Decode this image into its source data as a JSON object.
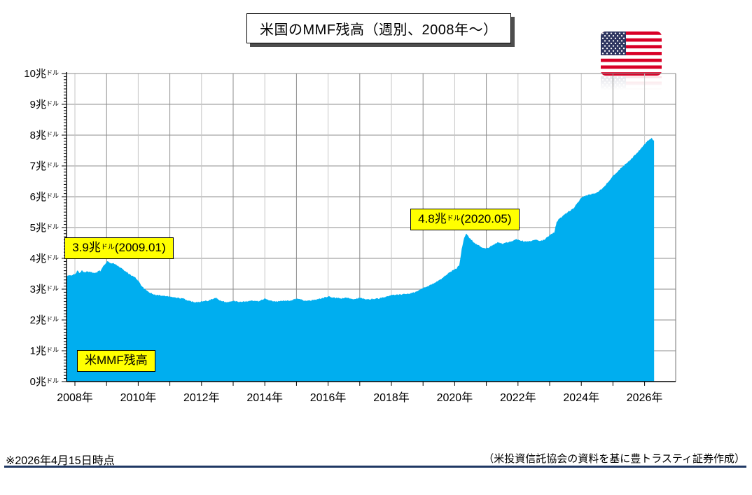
{
  "title": "米国のMMF残高（週別、2008年～）",
  "chart_data": {
    "type": "area",
    "title": "米国のMMF残高（週別、2008年～）",
    "series_name": "米MMF残高",
    "series_label": "米MMF残高",
    "y_unit_big": "兆",
    "y_unit_small": "ドル",
    "x_year_suffix": "年",
    "y_range": [
      0,
      10
    ],
    "y_ticks": [
      0,
      1,
      2,
      3,
      4,
      5,
      6,
      7,
      8,
      9,
      10
    ],
    "x_range": [
      2007.74,
      2026.98
    ],
    "x_gridline_years": [
      2008,
      2009,
      2010,
      2011,
      2012,
      2013,
      2014,
      2015,
      2016,
      2017,
      2018,
      2019,
      2020,
      2021,
      2022,
      2023,
      2024,
      2025,
      2026
    ],
    "x_tick_years_labeled": [
      2008,
      2010,
      2012,
      2014,
      2016,
      2018,
      2020,
      2022,
      2024,
      2026
    ],
    "area_color": "#00AEEF",
    "grid_color_major": "#8c8c8c",
    "grid_color_minor": "#c6c6c6",
    "axis_color": "#000000",
    "points": [
      [
        2007.74,
        3.42
      ],
      [
        2007.85,
        3.45
      ],
      [
        2008.0,
        3.48
      ],
      [
        2008.08,
        3.6
      ],
      [
        2008.15,
        3.52
      ],
      [
        2008.22,
        3.6
      ],
      [
        2008.3,
        3.55
      ],
      [
        2008.4,
        3.58
      ],
      [
        2008.5,
        3.55
      ],
      [
        2008.6,
        3.52
      ],
      [
        2008.7,
        3.55
      ],
      [
        2008.75,
        3.62
      ],
      [
        2008.8,
        3.58
      ],
      [
        2008.9,
        3.75
      ],
      [
        2009.0,
        3.88
      ],
      [
        2009.05,
        3.9
      ],
      [
        2009.1,
        3.86
      ],
      [
        2009.2,
        3.84
      ],
      [
        2009.3,
        3.8
      ],
      [
        2009.4,
        3.72
      ],
      [
        2009.5,
        3.66
      ],
      [
        2009.6,
        3.58
      ],
      [
        2009.7,
        3.5
      ],
      [
        2009.8,
        3.44
      ],
      [
        2009.9,
        3.38
      ],
      [
        2010.0,
        3.28
      ],
      [
        2010.1,
        3.12
      ],
      [
        2010.2,
        3.0
      ],
      [
        2010.35,
        2.9
      ],
      [
        2010.5,
        2.82
      ],
      [
        2010.7,
        2.8
      ],
      [
        2010.9,
        2.78
      ],
      [
        2011.0,
        2.76
      ],
      [
        2011.2,
        2.72
      ],
      [
        2011.4,
        2.7
      ],
      [
        2011.6,
        2.62
      ],
      [
        2011.8,
        2.58
      ],
      [
        2012.0,
        2.6
      ],
      [
        2012.2,
        2.63
      ],
      [
        2012.45,
        2.72
      ],
      [
        2012.6,
        2.62
      ],
      [
        2012.8,
        2.58
      ],
      [
        2013.0,
        2.62
      ],
      [
        2013.2,
        2.58
      ],
      [
        2013.4,
        2.6
      ],
      [
        2013.6,
        2.63
      ],
      [
        2013.8,
        2.6
      ],
      [
        2014.0,
        2.7
      ],
      [
        2014.2,
        2.62
      ],
      [
        2014.4,
        2.6
      ],
      [
        2014.6,
        2.63
      ],
      [
        2014.8,
        2.62
      ],
      [
        2015.0,
        2.7
      ],
      [
        2015.2,
        2.64
      ],
      [
        2015.4,
        2.62
      ],
      [
        2015.6,
        2.66
      ],
      [
        2015.8,
        2.7
      ],
      [
        2016.0,
        2.76
      ],
      [
        2016.2,
        2.72
      ],
      [
        2016.4,
        2.7
      ],
      [
        2016.6,
        2.72
      ],
      [
        2016.8,
        2.68
      ],
      [
        2017.0,
        2.72
      ],
      [
        2017.2,
        2.66
      ],
      [
        2017.4,
        2.68
      ],
      [
        2017.6,
        2.7
      ],
      [
        2017.8,
        2.74
      ],
      [
        2018.0,
        2.8
      ],
      [
        2018.2,
        2.82
      ],
      [
        2018.4,
        2.84
      ],
      [
        2018.6,
        2.86
      ],
      [
        2018.8,
        2.92
      ],
      [
        2019.0,
        3.04
      ],
      [
        2019.2,
        3.12
      ],
      [
        2019.4,
        3.22
      ],
      [
        2019.6,
        3.35
      ],
      [
        2019.8,
        3.52
      ],
      [
        2019.95,
        3.62
      ],
      [
        2020.05,
        3.66
      ],
      [
        2020.15,
        3.8
      ],
      [
        2020.22,
        4.3
      ],
      [
        2020.3,
        4.68
      ],
      [
        2020.37,
        4.8
      ],
      [
        2020.45,
        4.68
      ],
      [
        2020.55,
        4.58
      ],
      [
        2020.65,
        4.48
      ],
      [
        2020.75,
        4.42
      ],
      [
        2020.85,
        4.36
      ],
      [
        2020.95,
        4.32
      ],
      [
        2021.05,
        4.34
      ],
      [
        2021.2,
        4.42
      ],
      [
        2021.35,
        4.52
      ],
      [
        2021.5,
        4.48
      ],
      [
        2021.65,
        4.52
      ],
      [
        2021.8,
        4.56
      ],
      [
        2021.95,
        4.62
      ],
      [
        2022.1,
        4.58
      ],
      [
        2022.25,
        4.54
      ],
      [
        2022.4,
        4.56
      ],
      [
        2022.55,
        4.6
      ],
      [
        2022.7,
        4.56
      ],
      [
        2022.85,
        4.62
      ],
      [
        2023.0,
        4.76
      ],
      [
        2023.15,
        4.85
      ],
      [
        2023.22,
        5.18
      ],
      [
        2023.3,
        5.28
      ],
      [
        2023.45,
        5.4
      ],
      [
        2023.6,
        5.52
      ],
      [
        2023.75,
        5.62
      ],
      [
        2023.9,
        5.82
      ],
      [
        2024.0,
        5.96
      ],
      [
        2024.15,
        6.04
      ],
      [
        2024.3,
        6.08
      ],
      [
        2024.45,
        6.12
      ],
      [
        2024.6,
        6.22
      ],
      [
        2024.75,
        6.36
      ],
      [
        2024.9,
        6.55
      ],
      [
        2025.0,
        6.68
      ],
      [
        2025.15,
        6.82
      ],
      [
        2025.3,
        6.98
      ],
      [
        2025.45,
        7.1
      ],
      [
        2025.6,
        7.25
      ],
      [
        2025.75,
        7.42
      ],
      [
        2025.9,
        7.58
      ],
      [
        2026.0,
        7.7
      ],
      [
        2026.08,
        7.8
      ],
      [
        2026.15,
        7.85
      ],
      [
        2026.22,
        7.9
      ],
      [
        2026.3,
        7.82
      ]
    ],
    "annotations": [
      {
        "id": "peak-2009",
        "value_text": "3.9兆",
        "unit": "ドル",
        "date_text": "(2009.01)",
        "year": 2009.0,
        "value": 3.9
      },
      {
        "id": "peak-2020",
        "value_text": "4.8兆",
        "unit": "ドル",
        "date_text": "(2020.05)",
        "year": 2020.37,
        "value": 4.8
      }
    ]
  },
  "footer": {
    "left": "※2026年4月15日時点",
    "right": "（米投資信託協会の資料を基に豊トラスティ証券作成）",
    "divider_color": "#1F3864"
  },
  "flag": {
    "name": "us-flag",
    "red": "#D80027",
    "blue": "#2E3560",
    "white": "#FFFFFF"
  }
}
